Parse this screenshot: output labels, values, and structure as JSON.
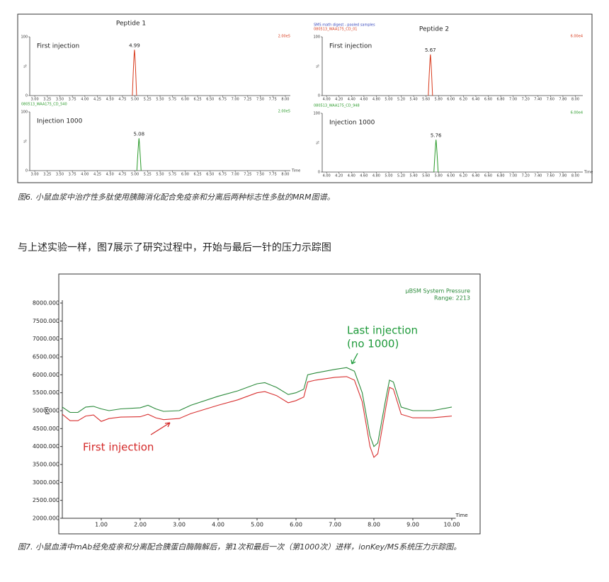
{
  "figure6": {
    "panels": [
      {
        "title": "Peptide 1",
        "header_lines": [],
        "scale_label": "2.00e5",
        "scale_color": "#d83a1c",
        "label": "First injection",
        "y_label": "%",
        "ylim": [
          0,
          100
        ],
        "yticks": [
          0,
          100
        ],
        "xlim": [
          2.9,
          8.1
        ],
        "color": "#d83a1c",
        "xticks": [
          {
            "value": 3,
            "label": "3.00"
          },
          {
            "value": 3.25,
            "label": "3.25"
          },
          {
            "value": 3.5,
            "label": "3.50"
          },
          {
            "value": 3.75,
            "label": "3.75"
          },
          {
            "value": 4,
            "label": "4.00"
          },
          {
            "value": 4.25,
            "label": "4.25"
          },
          {
            "value": 4.5,
            "label": "4.50"
          },
          {
            "value": 4.75,
            "label": "4.75"
          },
          {
            "value": 5,
            "label": "5.00"
          },
          {
            "value": 5.25,
            "label": "5.25"
          },
          {
            "value": 5.5,
            "label": "5.50"
          },
          {
            "value": 5.75,
            "label": "5.75"
          },
          {
            "value": 6,
            "label": "6.00"
          },
          {
            "value": 6.25,
            "label": "6.25"
          },
          {
            "value": 6.5,
            "label": "6.50"
          },
          {
            "value": 6.75,
            "label": "6.75"
          },
          {
            "value": 7,
            "label": "7.00"
          },
          {
            "value": 7.25,
            "label": "7.25"
          },
          {
            "value": 7.5,
            "label": "7.50"
          },
          {
            "value": 7.75,
            "label": "7.75"
          },
          {
            "value": 8,
            "label": "8.00"
          }
        ],
        "peak": {
          "x": 4.99,
          "height": 78
        }
      },
      {
        "header_lines": [
          {
            "text": "080513_WAA175_CD_540",
            "color": "#2a9a2a"
          }
        ],
        "scale_label": "2.00e5",
        "scale_color": "#2a9a2a",
        "label": "Injection 1000",
        "y_label": "%",
        "x_label": "Time",
        "ylim": [
          0,
          100
        ],
        "yticks": [
          0,
          100
        ],
        "xlim": [
          2.9,
          8.1
        ],
        "color": "#2a9a2a",
        "xticks": [
          {
            "value": 3,
            "label": "3.00"
          },
          {
            "value": 3.25,
            "label": "3.25"
          },
          {
            "value": 3.5,
            "label": "3.50"
          },
          {
            "value": 3.75,
            "label": "3.75"
          },
          {
            "value": 4,
            "label": "4.00"
          },
          {
            "value": 4.25,
            "label": "4.25"
          },
          {
            "value": 4.5,
            "label": "4.50"
          },
          {
            "value": 4.75,
            "label": "4.75"
          },
          {
            "value": 5,
            "label": "5.00"
          },
          {
            "value": 5.25,
            "label": "5.25"
          },
          {
            "value": 5.5,
            "label": "5.50"
          },
          {
            "value": 5.75,
            "label": "5.75"
          },
          {
            "value": 6,
            "label": "6.00"
          },
          {
            "value": 6.25,
            "label": "6.25"
          },
          {
            "value": 6.5,
            "label": "6.50"
          },
          {
            "value": 6.75,
            "label": "6.75"
          },
          {
            "value": 7,
            "label": "7.00"
          },
          {
            "value": 7.25,
            "label": "7.25"
          },
          {
            "value": 7.5,
            "label": "7.50"
          },
          {
            "value": 7.75,
            "label": "7.75"
          },
          {
            "value": 8,
            "label": "8.00"
          }
        ],
        "peak": {
          "x": 5.08,
          "height": 55
        }
      },
      {
        "title": "Peptide 2",
        "header_lines": [
          {
            "text": "SMS math digest - pooled samples",
            "color": "#3344bb"
          },
          {
            "text": "080513_WAA175_CD_01",
            "color": "#d83a1c"
          }
        ],
        "scale_label": "6.00e4",
        "scale_color": "#d83a1c",
        "label": "First injection",
        "y_label": "%",
        "ylim": [
          0,
          100
        ],
        "yticks": [
          0,
          100
        ],
        "xlim": [
          3.93,
          8.12
        ],
        "color": "#d83a1c",
        "xticks": [
          {
            "value": 4,
            "label": "4.00"
          },
          {
            "value": 4.2,
            "label": "4.20"
          },
          {
            "value": 4.4,
            "label": "4.40"
          },
          {
            "value": 4.6,
            "label": "4.60"
          },
          {
            "value": 4.8,
            "label": "4.80"
          },
          {
            "value": 5,
            "label": "5.00"
          },
          {
            "value": 5.2,
            "label": "5.20"
          },
          {
            "value": 5.4,
            "label": "5.40"
          },
          {
            "value": 5.6,
            "label": "5.60"
          },
          {
            "value": 5.8,
            "label": "5.80"
          },
          {
            "value": 6,
            "label": "6.00"
          },
          {
            "value": 6.2,
            "label": "6.20"
          },
          {
            "value": 6.4,
            "label": "6.40"
          },
          {
            "value": 6.6,
            "label": "6.60"
          },
          {
            "value": 6.8,
            "label": "6.80"
          },
          {
            "value": 7,
            "label": "7.00"
          },
          {
            "value": 7.2,
            "label": "7.20"
          },
          {
            "value": 7.4,
            "label": "7.40"
          },
          {
            "value": 7.6,
            "label": "7.60"
          },
          {
            "value": 7.8,
            "label": "7.80"
          },
          {
            "value": 8,
            "label": "8.00"
          }
        ],
        "peak": {
          "x": 5.67,
          "height": 70
        }
      },
      {
        "header_lines": [
          {
            "text": "080513_WAA175_CD_948",
            "color": "#2a9a2a"
          }
        ],
        "scale_label": "6.00e4",
        "scale_color": "#2a9a2a",
        "label": "Injection 1000",
        "y_label": "%",
        "x_label": "Time",
        "ylim": [
          0,
          100
        ],
        "yticks": [
          0,
          100
        ],
        "xlim": [
          3.93,
          8.12
        ],
        "color": "#2a9a2a",
        "xticks": [
          {
            "value": 4,
            "label": "4.00"
          },
          {
            "value": 4.2,
            "label": "4.20"
          },
          {
            "value": 4.4,
            "label": "4.40"
          },
          {
            "value": 4.6,
            "label": "4.60"
          },
          {
            "value": 4.8,
            "label": "4.80"
          },
          {
            "value": 5,
            "label": "5.00"
          },
          {
            "value": 5.2,
            "label": "5.20"
          },
          {
            "value": 5.4,
            "label": "5.40"
          },
          {
            "value": 5.6,
            "label": "5.60"
          },
          {
            "value": 5.8,
            "label": "5.80"
          },
          {
            "value": 6,
            "label": "6.00"
          },
          {
            "value": 6.2,
            "label": "6.20"
          },
          {
            "value": 6.4,
            "label": "6.40"
          },
          {
            "value": 6.6,
            "label": "6.60"
          },
          {
            "value": 6.8,
            "label": "6.80"
          },
          {
            "value": 7,
            "label": "7.00"
          },
          {
            "value": 7.2,
            "label": "7.20"
          },
          {
            "value": 7.4,
            "label": "7.40"
          },
          {
            "value": 7.6,
            "label": "7.60"
          },
          {
            "value": 7.8,
            "label": "7.80"
          },
          {
            "value": 8,
            "label": "8.00"
          }
        ],
        "peak": {
          "x": 5.76,
          "height": 55
        }
      }
    ],
    "caption": "图6. 小鼠血浆中治疗性多肽使用胰酶消化配合免疫亲和分离后两种标志性多肽的MRM图谱。"
  },
  "paragraph": "与上述实验一样，图7展示了研究过程中，开始与最后一针的压力示踪图",
  "figure7": {
    "chart": {
      "type": "line",
      "legend_lines": [
        "µBSM System Pressure",
        "Range: 2213"
      ],
      "y_label": "psi",
      "x_label": "Time",
      "xlim": [
        0,
        10.1
      ],
      "ylim": [
        2000,
        8000
      ],
      "xticks": [
        {
          "value": 1,
          "label": "1.00"
        },
        {
          "value": 2,
          "label": "2.00"
        },
        {
          "value": 3,
          "label": "3.00"
        },
        {
          "value": 4,
          "label": "4.00"
        },
        {
          "value": 5,
          "label": "5.00"
        },
        {
          "value": 6,
          "label": "6.00"
        },
        {
          "value": 7,
          "label": "7.00"
        },
        {
          "value": 8,
          "label": "8.00"
        },
        {
          "value": 9,
          "label": "9.00"
        },
        {
          "value": 10,
          "label": "10.00"
        }
      ],
      "yticks": [
        {
          "value": 2000,
          "label": "2000.000"
        },
        {
          "value": 2500,
          "label": "2500.000"
        },
        {
          "value": 3000,
          "label": "3000.000"
        },
        {
          "value": 3500,
          "label": "3500.000"
        },
        {
          "value": 4000,
          "label": "4000.000"
        },
        {
          "value": 4500,
          "label": "4500.000"
        },
        {
          "value": 5000,
          "label": "5000.000"
        },
        {
          "value": 5500,
          "label": "5500.000"
        },
        {
          "value": 6000,
          "label": "6000.000"
        },
        {
          "value": 6500,
          "label": "6500.000"
        },
        {
          "value": 7000,
          "label": "7000.000"
        },
        {
          "value": 7500,
          "label": "7500.000"
        },
        {
          "value": 8000,
          "label": "8000.000"
        }
      ],
      "x": [
        0,
        0.2,
        0.4,
        0.6,
        0.8,
        1.0,
        1.2,
        1.5,
        2.0,
        2.2,
        2.4,
        2.6,
        3.0,
        3.3,
        4.0,
        4.5,
        5.0,
        5.2,
        5.5,
        5.8,
        6.0,
        6.2,
        6.3,
        6.5,
        7.0,
        7.3,
        7.5,
        7.7,
        7.9,
        8.0,
        8.1,
        8.3,
        8.4,
        8.5,
        8.7,
        9.0,
        9.5,
        10.0
      ],
      "series": [
        {
          "name": "Last injection",
          "color": "#2a8a3a",
          "values": [
            5100,
            4950,
            4950,
            5100,
            5120,
            5050,
            5000,
            5050,
            5080,
            5150,
            5050,
            4980,
            5000,
            5150,
            5400,
            5550,
            5750,
            5780,
            5650,
            5450,
            5500,
            5600,
            6000,
            6050,
            6150,
            6200,
            6100,
            5500,
            4300,
            4000,
            4100,
            5300,
            5850,
            5800,
            5100,
            5000,
            5000,
            5100
          ]
        },
        {
          "name": "First injection",
          "color": "#d83030",
          "values": [
            4900,
            4720,
            4720,
            4850,
            4880,
            4700,
            4780,
            4820,
            4830,
            4900,
            4800,
            4750,
            4780,
            4920,
            5150,
            5300,
            5500,
            5530,
            5420,
            5220,
            5280,
            5380,
            5800,
            5850,
            5930,
            5950,
            5850,
            5250,
            4000,
            3700,
            3800,
            5050,
            5650,
            5600,
            4900,
            4800,
            4800,
            4850
          ]
        }
      ],
      "annotations": [
        {
          "lines": [
            "Last injection",
            "(no 1000)"
          ],
          "color": "#1e9a3a"
        },
        {
          "lines": [
            "First injection"
          ],
          "color": "#d42a2a"
        }
      ]
    },
    "caption": "图7. 小鼠血清中mAb经免疫亲和分离配合胰蛋白酶酶解后，第1次和最后一次（第1000次）进样，ionKey/MS系统压力示踪图。"
  }
}
